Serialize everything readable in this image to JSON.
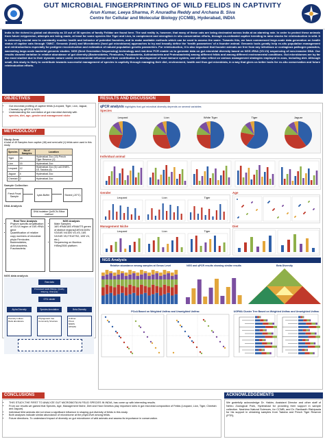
{
  "header": {
    "title": "GUT MICROBIAL FINGERPRINTING OF WILD FELIDS IN CAPTIVITY",
    "authors": "Arun Kumar, Leeya Sharma, P. Anuradha Reddy and Archana B. Siva",
    "affiliation": "Centre for Cellular and Molecular Biology (CCMB), Hyderabad, INDIA"
  },
  "intro": "India is the richest in global cat diversity as 15 out of 36 species of family Felidae are found here. The sad reality is, however, that many of these cats are being decimated across India at an alarming rate. In order to protect these animals from future extypercion, attempts are being made, at least for some species like Tiger and Lion, to complement and strengthen in situ conservation efforts, through co-ordinated captive breeding to raise stocks for reintroduction in wild. It is extremely crucial now to constantly monitor health and behavior of potential founders, and to make available methods which can be used to assess the same. Towards this, we have commenced large-scale data generation on health status of captive cats through 'OMIC'- Genomic (host) and Microbiomic (host gut microbiome) approaches to try and broadly define the 'health parameters' of a founder animal. Genomic tools greatly help ex-situ population management and reintroductions especially for pedigree reconstruction and estimation of natural population genetic parameters. For reintroduction, it is also important that founder animals are free from any infectious or contagious pathogen parasites, warranting large-scale bacterial genomic studies. NGS (Next Generation Sequencing) technology and real-time PCR enable us to generate data on gut microbial diversity based on NGS rRNA (V3-V4) sequencing of non-invasive DNA. Our results showed variation in relative abundance of gut diversity (Bacteroidetes, Firmicutes, Fusobacteria, Actinobacteria and Proteobacteria) among different felids and among different environmental conditions. Gut microbiomes are by far the most studied due to their dynamic nature under environmental influence and their contribution to development of host immune system, and will also reflect on various management strategies employed in zoos, including diet. Although small, this study is likely to contribute towards successful management of species in captivity through managing their diet, environment, health and thus gut microbiota, in a way that gives us better tools for ex-situ conservation and future reintroduction efforts.",
  "objectives": {
    "title": "OBJECTIVES",
    "items": [
      "Gut microbial profiling of captive felids (Leopard, Tiger, Lion, Jaguar, Cheetah) by qPCR & NGS.",
      "Understanding the correlation of gut microbial diversity with"
    ],
    "highlight": "species, diet, age, gender and management niche"
  },
  "methodology": {
    "title": "METHODOLOGY",
    "study_area_label": "Study Area:",
    "study_area_text": "A total of 49 Samples from captive (48) and semi-wild (1) felids were used in this study.",
    "table": {
      "headers": [
        "Species",
        "No.of Samples",
        "Location"
      ],
      "rows": [
        [
          "Tiger",
          "16",
          "Hyderabad Zoo (15) Pench Tiger Reserve (1)"
        ],
        [
          "Lion",
          "15",
          "Hyderabad Zoo"
        ],
        [
          "Leopard",
          "12",
          "Hyderabad Zoo (6) LaCONES-18, Tadoba (6)"
        ],
        [
          "Jaguar",
          "4",
          "Hyderabad Zoo"
        ],
        [
          "Cheetah",
          "2",
          "Hyderabad Zoo"
        ]
      ]
    },
    "sample_collection_label": "Sample Collection",
    "flow": [
      "Fresh Fecal Sample",
      "Lysis Buffer",
      "Stored (-20°C)"
    ],
    "dna_label": "DNA Analysis",
    "dna_box": "DNA isolation QuiSCN-Silica method",
    "realtime_title": "Real Time Analysis",
    "realtime_items": [
      "Phylum specific amplification of V3-V4 region of 16S rRNA gene",
      "Quantification of relative copy numbers of microbial phyla Firmicutes Bacteroidetes, Actinobacteria, Fusobacteria."
    ],
    "ngs_title": "NGS Analysis",
    "ngs_items": [
      "Mate Samples",
      "16S rRNA/18S rRNA/ITS genes of distinct regions(16SV4/16SV V3/16S V4/16S V4-V5, 16S V4/16S V5,ITS1/ITS2, 18S V4, etc.)",
      "Sequencing on Illumina HiSeq2500 platform"
    ],
    "ngs_workflow_label": "NGS data analysis",
    "wf_boxes": [
      "Raw data",
      "Processed reads (Merge, Quality, Filtering, Chimera)",
      "OTU cluster",
      "Alpha Diversity",
      "Species Annotation",
      "Beta Diversity",
      "Diversity Indices",
      "Rank abundance",
      "Phylogenetic tree",
      "Community Structure",
      "UniFrac",
      "PCoA",
      "NMDS",
      "UPGMA"
    ]
  },
  "results": {
    "title": "RESULTS AND DISCUSSION",
    "qpcr_title": "qPCR analysis",
    "qpcr_sub": "highlights that gut microbial diversity depends on several variables",
    "species_label": "Species",
    "pie_titles": [
      "Leopard",
      "Lion",
      "White Tiger",
      "Tiger",
      "Jaguar"
    ],
    "individual_label": "Individual animal",
    "gender_label": "Gender",
    "age_label": "Age",
    "gender_groups": [
      "Leopard",
      "Lion",
      "Tiger"
    ],
    "niche_label": "Management Niche",
    "diet_label": "Diet",
    "niche_groups": [
      "Leopard",
      "Lion",
      "Tiger"
    ],
    "ngs_label": "NGS Analysis",
    "rel_title": "Relative abundance among samples at Genus Level",
    "venn_title": "NGS and qPCR results showing similar results",
    "beta_title": "Beta Diversity",
    "pcoa_title": "PCoA Based on Weighted Unifrac and Unweighted Unifrac",
    "upgma_title": "UGPMA Cluster Tree Based on Weighted Unifrac and Unweighted Unifrac"
  },
  "conclusions": {
    "title": "CONCLUSIONS",
    "items": [
      "THIS STUDY,THE FIRST TO ANALYZE GUT MICROBIOTA IN FELID SPECIES IN INDIA, has come up with interesting results.",
      "From our results we gained that Species, Age, Management Niche, Diet and Host Genetics play important roles in gut microbial composition of Felids (Leopard, Lion, Tiger, Cheetah and Jaguar).",
      "Individual felid animals did not show a significant influence in shaping gut diversity of felids in this study.",
      "Both analyses indicate similar abundance of microbiome at the phyla level among felids.",
      "Future directions- To understand impact of diversity on gut microbiome of wild animals and assess its importance in conservation."
    ]
  },
  "acknowledgements": {
    "title": "ACKNOWLEDGEMENTS",
    "text": "We gratefully acknowledge Dr. Hakim, Assistant Director and other staff of Nehru Zoological Park, Hyderabad for providing their support in sample collection. Nashimo Natural Sciences, for CCMB, and Dr. Ravikanth Rishipaula for his support in obtaining samples from Tadoba and Pench Tiger Reserve (PTR)."
  },
  "colors": {
    "navy": "#16326e",
    "red": "#c0392b",
    "bacteroidetes": "#c0392b",
    "firmicutes": "#2e5fa8",
    "actinobacteria": "#8fb04a",
    "fusobacteria": "#7b4fa0",
    "proteobacteria": "#e2a63c"
  }
}
